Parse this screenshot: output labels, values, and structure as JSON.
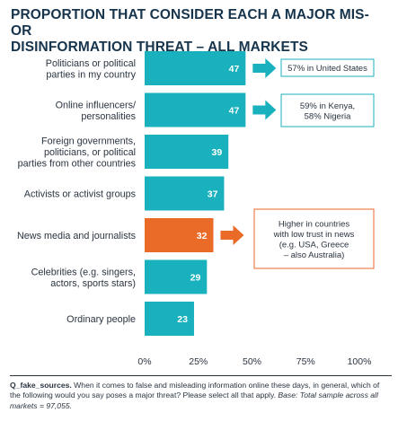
{
  "chart_data": {
    "type": "bar",
    "orientation": "horizontal",
    "title_lines": [
      "PROPORTION THAT CONSIDER EACH A MAJOR MIS- OR",
      "DISINFORMATION THREAT – ALL MARKETS"
    ],
    "categories": [
      [
        "Politicians or political",
        "parties in my country"
      ],
      [
        "Online influencers/",
        "personalities"
      ],
      [
        "Foreign governments,",
        "politicians, or political",
        "parties from other countries"
      ],
      [
        "Activists or activist groups"
      ],
      [
        "News media and journalists"
      ],
      [
        "Celebrities (e.g. singers,",
        "actors, sports stars)"
      ],
      [
        "Ordinary people"
      ]
    ],
    "values": [
      47,
      47,
      39,
      37,
      32,
      29,
      23
    ],
    "highlight_index": 4,
    "xlim": [
      0,
      100
    ],
    "x_ticks": [
      "0%",
      "25%",
      "50%",
      "75%",
      "100%"
    ],
    "callouts": [
      {
        "bar_index": 0,
        "lines": [
          "57% in United States"
        ]
      },
      {
        "bar_index": 1,
        "lines": [
          "59% in Kenya,",
          "58% Nigeria"
        ]
      },
      {
        "bar_index": 4,
        "lines": [
          "Higher in countries",
          "with low trust in news",
          "(e.g. USA, Greece",
          "– also Australia)"
        ]
      }
    ],
    "colors": {
      "bar": "#19b1be",
      "highlight": "#ea6a27",
      "title": "#17344d",
      "text": "#2a3440"
    }
  },
  "footnote": {
    "label": "Q_fake_sources.",
    "question": " When it comes to false and misleading information online these days, in general, which of the following would you say poses a major threat? Please select all that apply. ",
    "base": "Base: Total sample across all markets = 97,055."
  }
}
